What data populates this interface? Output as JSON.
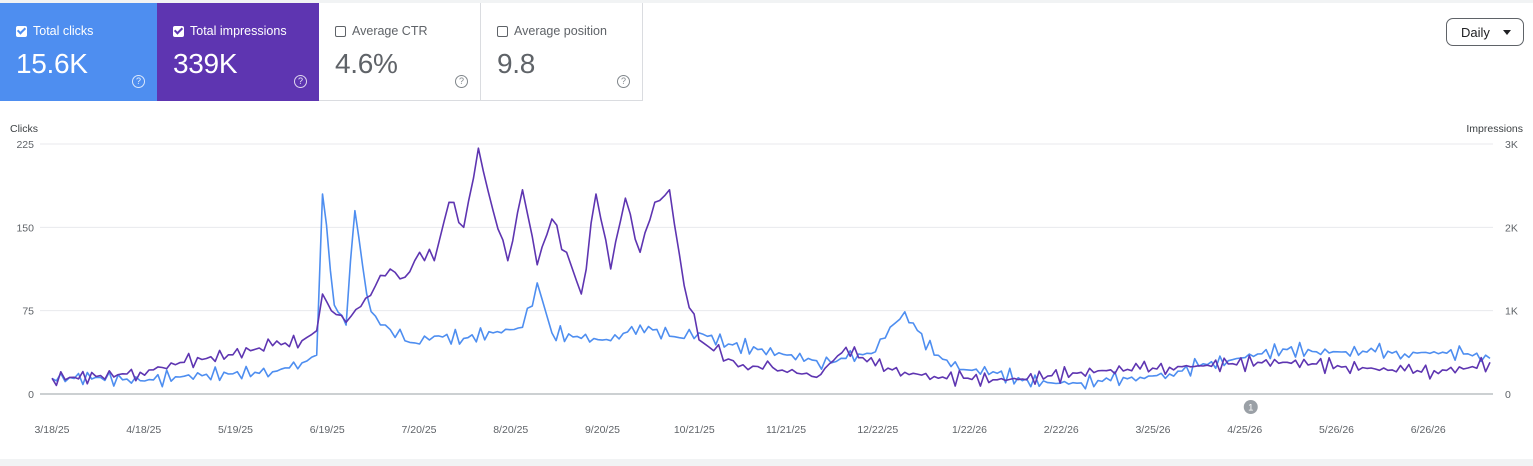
{
  "metrics": {
    "clicks": {
      "label": "Total clicks",
      "value": "15.6K",
      "checked": true,
      "color": "#4e8ef0"
    },
    "impressions": {
      "label": "Total impressions",
      "value": "339K",
      "checked": true,
      "color": "#5e35b1"
    },
    "ctr": {
      "label": "Average CTR",
      "value": "4.6%",
      "checked": false
    },
    "position": {
      "label": "Average position",
      "value": "9.8",
      "checked": false
    }
  },
  "help_glyph": "?",
  "granularity": "Daily",
  "chart_data": {
    "type": "line",
    "left_axis": {
      "title": "Clicks",
      "ticks": [
        "225",
        "150",
        "75",
        "0"
      ],
      "ylim": [
        0,
        225
      ]
    },
    "right_axis": {
      "title": "Impressions",
      "ticks": [
        "3K",
        "2K",
        "1K",
        "0"
      ],
      "ylim": [
        0,
        3000
      ]
    },
    "x_tick_labels": [
      "3/18/25",
      "4/18/25",
      "5/19/25",
      "6/19/25",
      "7/20/25",
      "8/20/25",
      "9/20/25",
      "10/21/25",
      "11/21/25",
      "12/22/25",
      "1/22/26",
      "2/22/26",
      "3/25/26",
      "4/25/26",
      "5/26/26",
      "6/26/26"
    ],
    "annotation": {
      "label": "1",
      "date": "4/25/26"
    },
    "series": [
      {
        "axis": "left",
        "color": "#4e8ef0",
        "x_days": [
          0,
          15,
          30,
          45,
          60,
          75,
          85,
          90,
          92,
          96,
          100,
          103,
          107,
          110,
          115,
          120,
          125,
          130,
          140,
          150,
          160,
          165,
          170,
          180,
          190,
          200,
          210,
          215,
          220,
          230,
          240,
          250,
          260,
          265,
          270,
          280,
          285,
          290,
          300,
          310,
          320,
          330,
          340,
          350,
          360,
          370,
          380,
          390,
          400,
          410,
          420,
          430,
          440,
          450,
          460,
          470,
          480,
          489
        ],
        "values": [
          14,
          15,
          12,
          16,
          18,
          20,
          28,
          35,
          180,
          80,
          62,
          165,
          90,
          70,
          58,
          48,
          45,
          52,
          50,
          55,
          60,
          100,
          55,
          50,
          48,
          62,
          52,
          50,
          55,
          45,
          40,
          35,
          30,
          28,
          32,
          38,
          60,
          74,
          35,
          22,
          20,
          12,
          10,
          10,
          12,
          15,
          18,
          25,
          30,
          36,
          40,
          38,
          38,
          38,
          36,
          38,
          36,
          32
        ]
      },
      {
        "axis": "right",
        "color": "#5e35b1",
        "x_days": [
          0,
          15,
          30,
          45,
          60,
          75,
          85,
          90,
          92,
          95,
          100,
          105,
          110,
          115,
          120,
          125,
          130,
          135,
          140,
          145,
          150,
          155,
          160,
          165,
          170,
          175,
          180,
          185,
          190,
          195,
          200,
          205,
          210,
          215,
          220,
          225,
          230,
          235,
          240,
          245,
          250,
          255,
          260,
          270,
          280,
          290,
          300,
          310,
          320,
          330,
          340,
          350,
          360,
          370,
          380,
          390,
          400,
          410,
          420,
          430,
          440,
          450,
          460,
          470,
          480,
          489
        ],
        "values": [
          190,
          210,
          260,
          380,
          470,
          580,
          640,
          760,
          1200,
          1000,
          860,
          1050,
          1300,
          1500,
          1400,
          1700,
          1600,
          2300,
          2000,
          2950,
          2200,
          1600,
          2450,
          1550,
          2100,
          1700,
          1200,
          2400,
          1500,
          2350,
          1700,
          2300,
          2450,
          1300,
          650,
          520,
          420,
          350,
          330,
          320,
          260,
          240,
          200,
          560,
          340,
          260,
          210,
          190,
          170,
          180,
          220,
          260,
          290,
          300,
          320,
          340,
          360,
          380,
          380,
          360,
          330,
          300,
          280,
          280,
          300,
          380
        ]
      }
    ]
  }
}
